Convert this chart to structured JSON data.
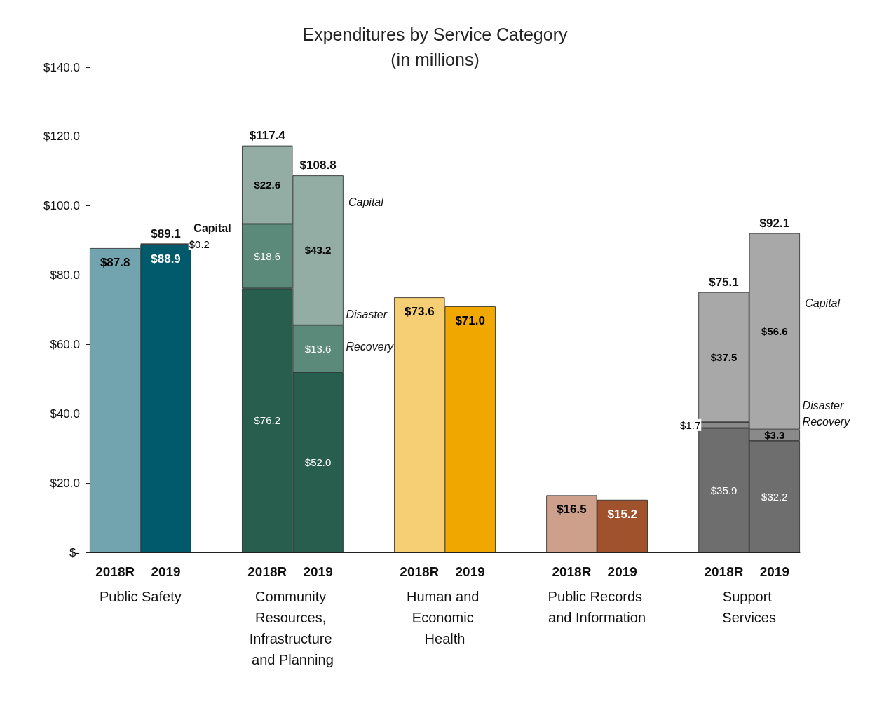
{
  "chart_data": {
    "type": "bar",
    "title": "Expenditures by Service Category\n(in millions)",
    "stacked": true,
    "categories": [
      "2018R",
      "2019",
      null,
      "2018R",
      "2019",
      null,
      "2018R",
      "2019",
      null,
      "2018R",
      "2019",
      null,
      "2018R",
      "2019"
    ],
    "series": [
      {
        "colors": [
          "#72a4b0",
          "#005a6b",
          null,
          "#275e4d",
          "#275e4d",
          null,
          "#f6cf75",
          "#f0a800",
          null,
          "#cca08a",
          "#a0522d",
          null,
          "#6e6e6e",
          "#6e6e6e"
        ],
        "values": [
          87.8,
          88.9,
          null,
          76.2,
          52.0,
          null,
          73.6,
          71.0,
          null,
          16.5,
          15.2,
          null,
          35.9,
          32.2
        ],
        "value_labels": [
          "$87.8",
          "$88.9",
          null,
          "$76.2",
          "$52.0",
          null,
          "$73.6",
          "$71.0",
          null,
          "$16.5",
          "$15.2",
          null,
          "$35.9",
          "$32.2"
        ]
      },
      {
        "colors": [
          null,
          null,
          null,
          "#5b8a7a",
          "#5b8a7a",
          null,
          null,
          null,
          null,
          null,
          null,
          null,
          "#8a8a8a",
          "#8a8a8a"
        ],
        "values": [
          null,
          null,
          null,
          18.6,
          13.6,
          null,
          null,
          null,
          null,
          null,
          null,
          null,
          1.7,
          3.3
        ],
        "value_labels": [
          null,
          null,
          null,
          "$18.6",
          "$13.6",
          null,
          null,
          null,
          null,
          null,
          null,
          null,
          "$1.7",
          "$3.3"
        ]
      },
      {
        "colors": [
          null,
          "#1a1a1a",
          null,
          "#93ada4",
          "#93ada4",
          null,
          null,
          null,
          null,
          null,
          null,
          null,
          "#a8a8a8",
          "#a8a8a8"
        ],
        "values": [
          null,
          0.2,
          null,
          22.6,
          43.2,
          null,
          null,
          null,
          null,
          null,
          null,
          null,
          37.5,
          56.6
        ],
        "value_labels": [
          null,
          "$0.2",
          null,
          "$22.6",
          "$43.2",
          null,
          null,
          null,
          null,
          null,
          null,
          null,
          "$37.5",
          "$56.6"
        ]
      }
    ],
    "totals": [
      null,
      "$89.1",
      null,
      "$117.4",
      "$108.8",
      null,
      null,
      null,
      null,
      null,
      null,
      null,
      "$75.1",
      "$92.1"
    ],
    "ylim": [
      0,
      140
    ],
    "yticks": [
      {
        "value": 0,
        "label": "$-"
      },
      {
        "value": 20,
        "label": "$20.0"
      },
      {
        "value": 40,
        "label": "$40.0"
      },
      {
        "value": 60,
        "label": "$60.0"
      },
      {
        "value": 80,
        "label": "$80.0"
      },
      {
        "value": 100,
        "label": "$100.0"
      },
      {
        "value": 120,
        "label": "$120.0"
      },
      {
        "value": 140,
        "label": "$140.0"
      }
    ],
    "grid": false,
    "annotations": [
      "Public Safety",
      "Community Resources, Infrastructure and Planning",
      "Human and Economic Health",
      "Public Records and Information",
      "Support Services",
      "Capital",
      "Capital",
      "Disaster Recovery",
      "Capital",
      "Disaster Recovery"
    ]
  }
}
